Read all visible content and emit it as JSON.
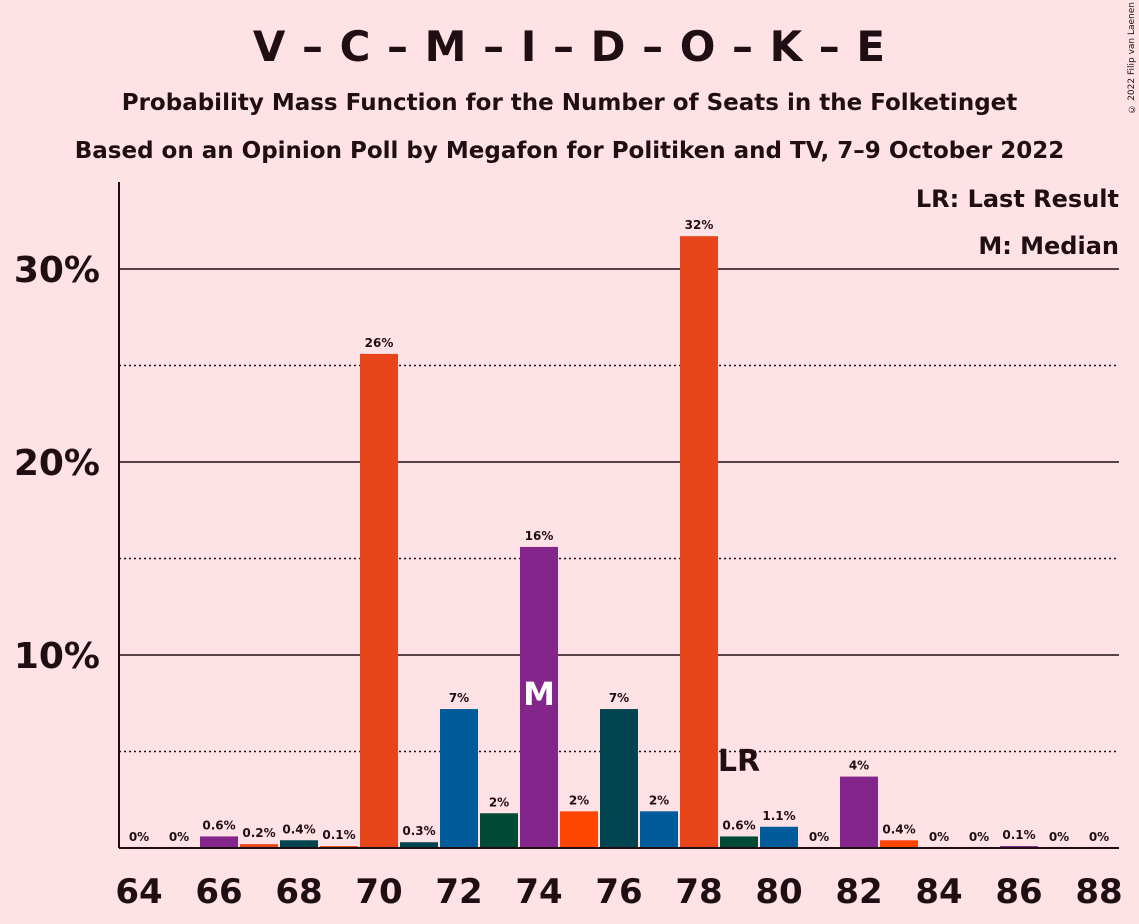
{
  "chart_data": {
    "type": "bar",
    "title": "V – C – M – I – D – O – K – E",
    "subtitle": "Probability Mass Function for the Number of Seats in the Folketinget",
    "subtitle2": "Based on an Opinion Poll by Megafon for Politiken and TV, 7–9 October 2022",
    "credit": "© 2022 Filip van Laenen",
    "legend": {
      "last_result": "LR: Last Result",
      "median": "M: Median"
    },
    "x": [
      64,
      65,
      66,
      67,
      68,
      69,
      70,
      71,
      72,
      73,
      74,
      75,
      76,
      77,
      78,
      79,
      80,
      81,
      82,
      83,
      84,
      85,
      86,
      87,
      88
    ],
    "values": [
      0,
      0,
      0.6,
      0.2,
      0.4,
      0.1,
      25.6,
      0.3,
      7.2,
      1.8,
      15.6,
      1.9,
      7.2,
      1.9,
      31.7,
      0.6,
      1.1,
      0,
      3.7,
      0.4,
      0,
      0,
      0.1,
      0,
      0
    ],
    "labels": [
      "0%",
      "0%",
      "0.6%",
      "0.2%",
      "0.4%",
      "0.1%",
      "26%",
      "0.3%",
      "7%",
      "2%",
      "16%",
      "2%",
      "7%",
      "2%",
      "32%",
      "0.6%",
      "1.1%",
      "0%",
      "4%",
      "0.4%",
      "0%",
      "0%",
      "0.1%",
      "0%",
      "0%"
    ],
    "colors": [
      "#e8461a",
      "#e8461a",
      "#84258c",
      "#e8461a",
      "#004450",
      "#e8461a",
      "#e8461a",
      "#004450",
      "#005b9a",
      "#004a36",
      "#84258c",
      "#ff4500",
      "#004450",
      "#005b9a",
      "#e8461a",
      "#004a36",
      "#005b9a",
      "#e8461a",
      "#84258c",
      "#ff4500",
      "#e8461a",
      "#e8461a",
      "#84258c",
      "#e8461a",
      "#e8461a"
    ],
    "x_tick_labels": [
      "64",
      "66",
      "68",
      "70",
      "72",
      "74",
      "76",
      "78",
      "80",
      "82",
      "84",
      "86",
      "88"
    ],
    "y_tick_labels": [
      "10%",
      "20%",
      "30%"
    ],
    "ylim": [
      0,
      34
    ],
    "median_seat": 74,
    "median_marker": "M",
    "last_result_seat": 79,
    "last_result_marker": "LR",
    "grid": "solid at 10% steps, dotted at 5% steps"
  }
}
